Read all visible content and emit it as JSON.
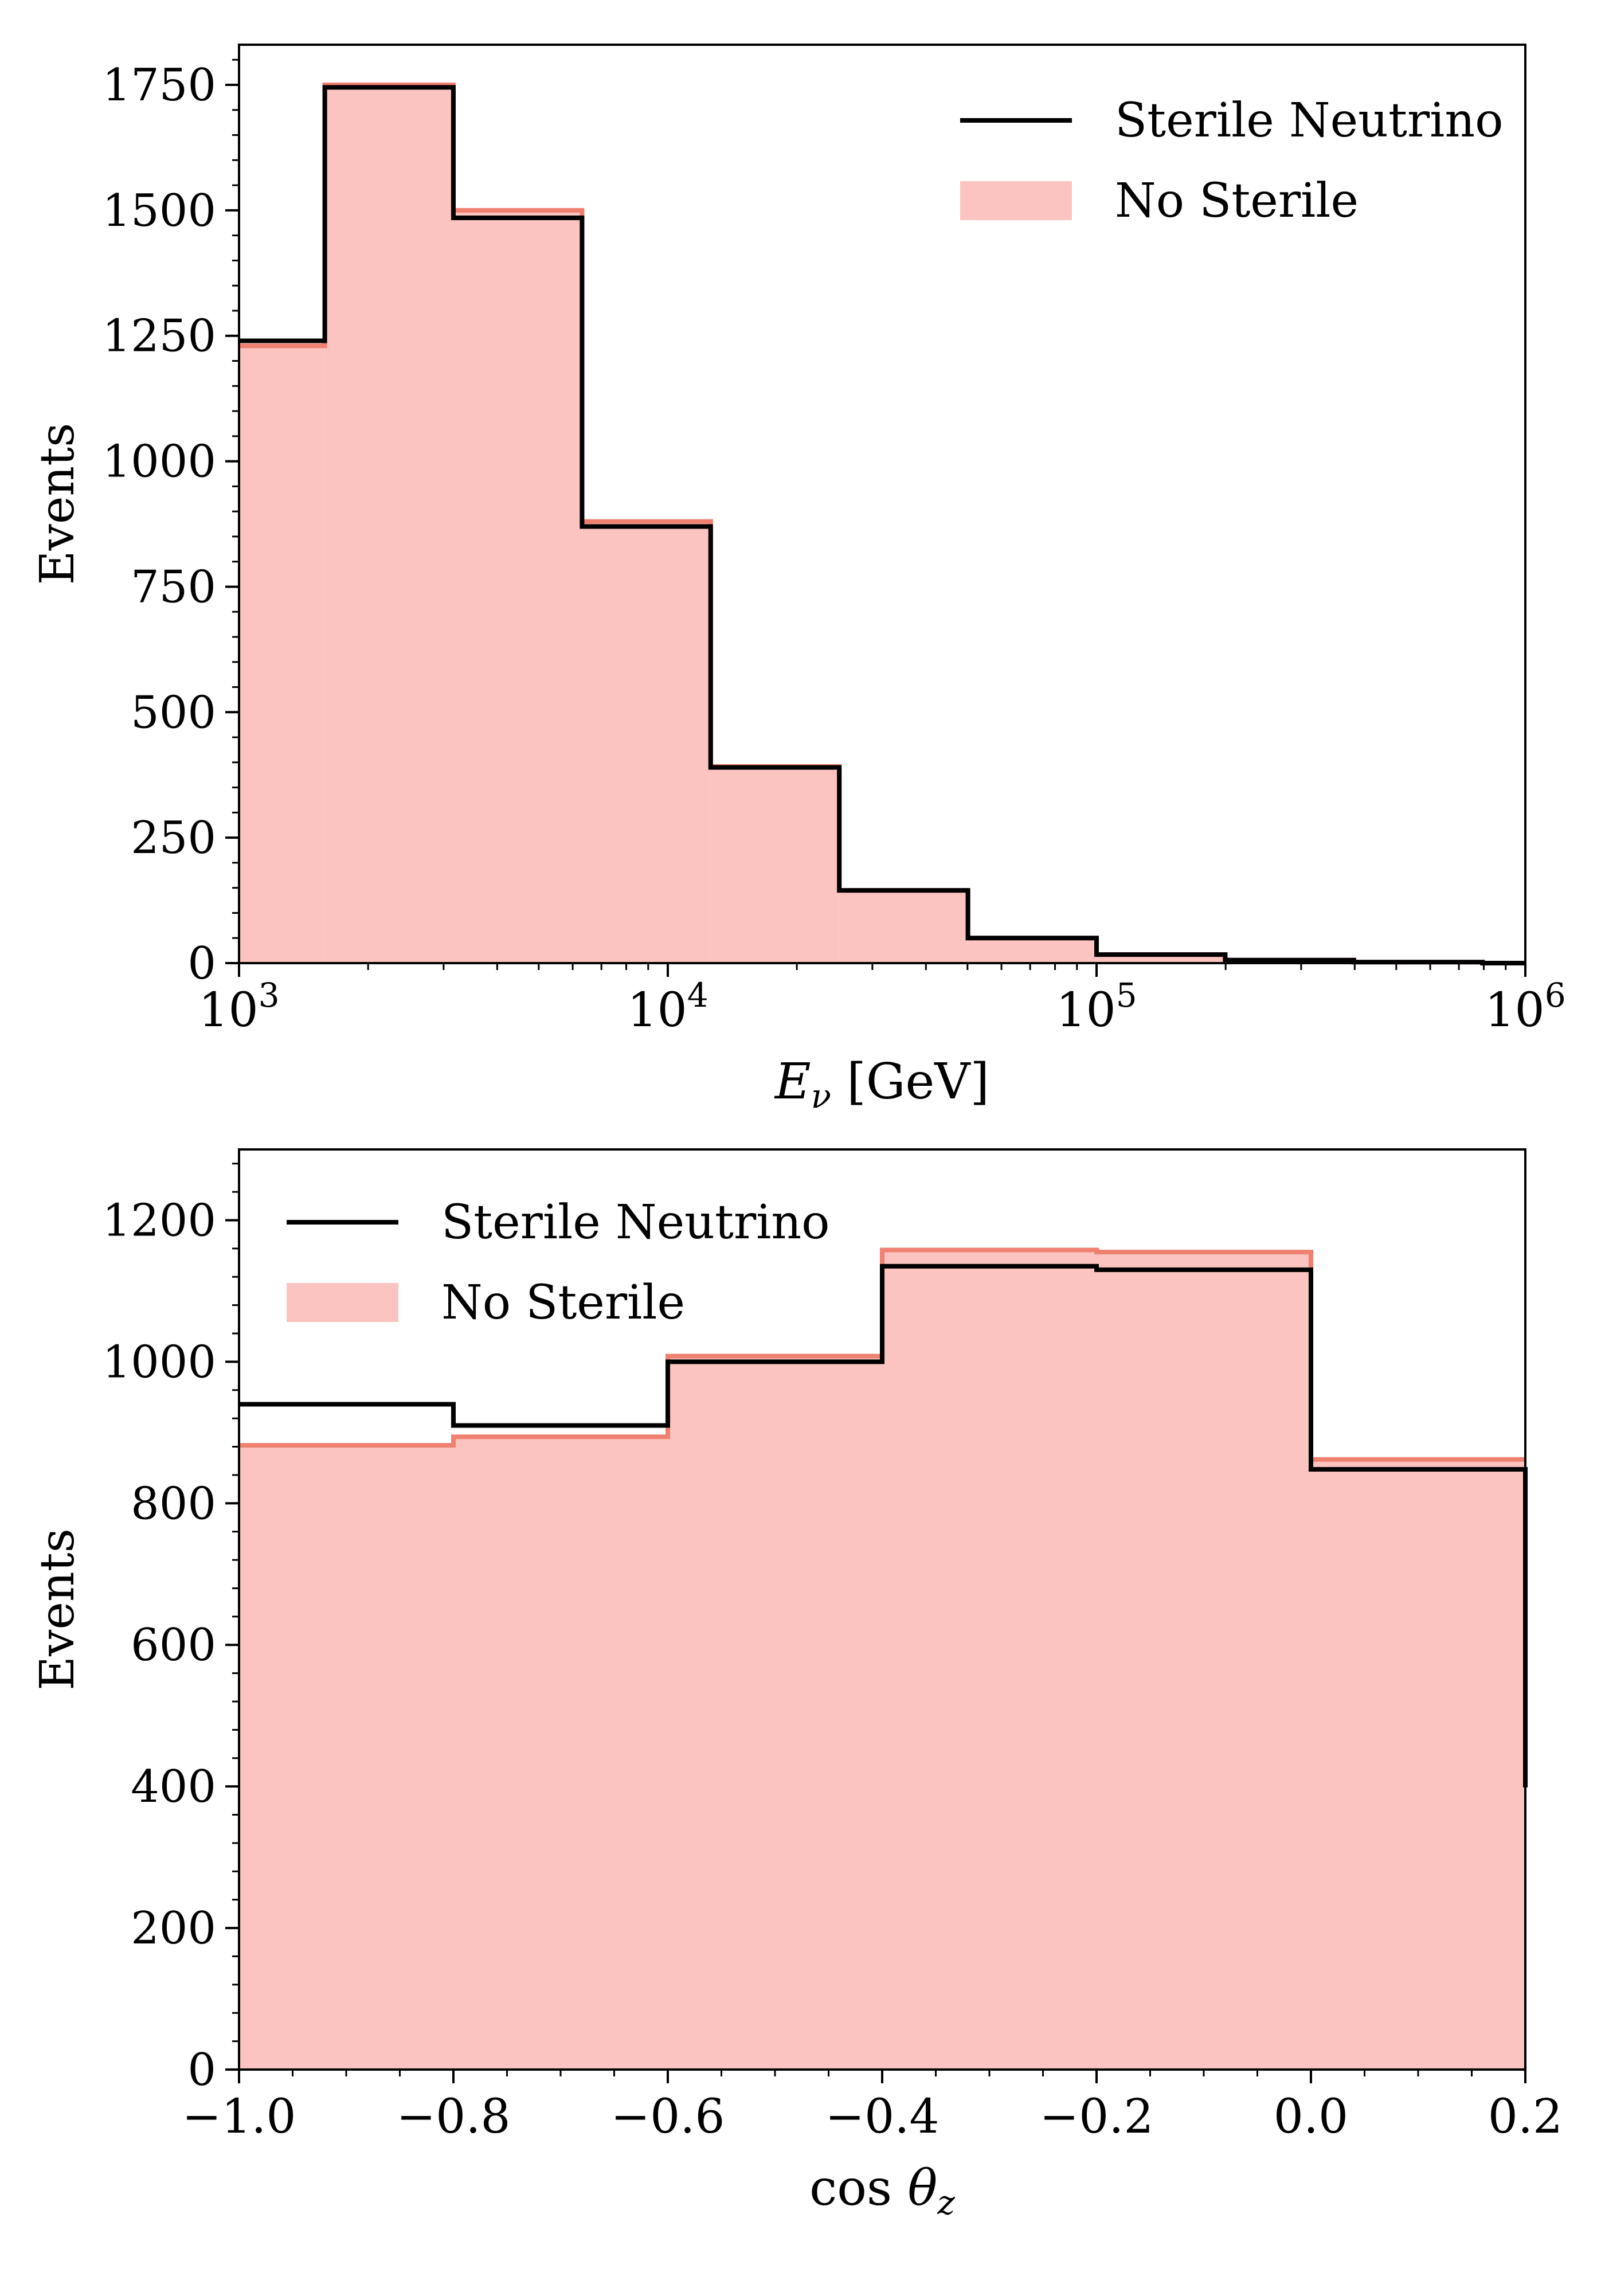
{
  "colors": {
    "no_sterile_fill": "#fbc4c0",
    "no_sterile_edge": "#f08070",
    "sterile_line": "#000000",
    "axes": "#000000",
    "background": "#ffffff"
  },
  "chart_data": [
    {
      "type": "bar",
      "xlabel": "E_ν [GeV]",
      "xlabel_parts": {
        "symbol": "E",
        "subscript": "ν",
        "unit": " [GeV]"
      },
      "ylabel": "Events",
      "xscale": "log",
      "xlim": [
        1000,
        1000000
      ],
      "ylim": [
        0,
        1830
      ],
      "xticks": [
        {
          "value": 1000,
          "base": "10",
          "exp": "3"
        },
        {
          "value": 10000,
          "base": "10",
          "exp": "4"
        },
        {
          "value": 100000,
          "base": "10",
          "exp": "5"
        },
        {
          "value": 1000000,
          "base": "10",
          "exp": "6"
        }
      ],
      "yticks": [
        0,
        250,
        500,
        750,
        1000,
        1250,
        1500,
        1750
      ],
      "yticklabels": [
        "0",
        "250",
        "500",
        "750",
        "1000",
        "1250",
        "1500",
        "1750"
      ],
      "grid": false,
      "legend_position": "top-right",
      "bin_edges": [
        1000,
        1585,
        3162,
        6310,
        12589,
        25119,
        50119,
        100000,
        199526,
        398107,
        794328,
        1000000
      ],
      "series": [
        {
          "name": "Sterile Neutrino",
          "style": "step",
          "values": [
            1240,
            1745,
            1485,
            870,
            390,
            145,
            50,
            17,
            6,
            2,
            0
          ]
        },
        {
          "name": "No Sterile",
          "style": "filled",
          "values": [
            1230,
            1750,
            1500,
            880,
            392,
            145,
            50,
            17,
            6,
            2,
            0
          ]
        }
      ],
      "legend": [
        "Sterile Neutrino",
        "No Sterile"
      ]
    },
    {
      "type": "bar",
      "xlabel": "cos θ_z",
      "xlabel_parts": {
        "prefix": "cos ",
        "symbol": "θ",
        "subscript": "z"
      },
      "ylabel": "Events",
      "xlim": [
        -1.0,
        0.2
      ],
      "ylim": [
        0,
        1300
      ],
      "xticks": [
        -1.0,
        -0.8,
        -0.6,
        -0.4,
        -0.2,
        0.0,
        0.2
      ],
      "xticklabels": [
        "−1.0",
        "−0.8",
        "−0.6",
        "−0.4",
        "−0.2",
        "0.0",
        "0.2"
      ],
      "yticks": [
        0,
        200,
        400,
        600,
        800,
        1000,
        1200
      ],
      "yticklabels": [
        "0",
        "200",
        "400",
        "600",
        "800",
        "1000",
        "1200"
      ],
      "grid": false,
      "legend_position": "top-left",
      "bin_edges": [
        -1.0,
        -0.8,
        -0.6,
        -0.4,
        -0.2,
        0.0,
        0.2
      ],
      "series": [
        {
          "name": "Sterile Neutrino",
          "style": "step",
          "values": [
            940,
            910,
            1000,
            1135,
            1130,
            848
          ]
        },
        {
          "name": "No Sterile",
          "style": "filled",
          "values": [
            882,
            894,
            1008,
            1158,
            1155,
            862
          ]
        }
      ],
      "legend": [
        "Sterile Neutrino",
        "No Sterile"
      ]
    }
  ]
}
